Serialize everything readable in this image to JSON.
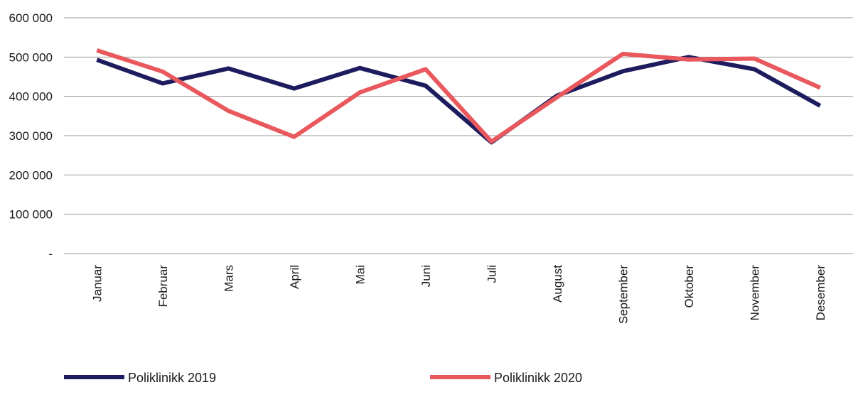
{
  "chart_data": {
    "type": "line",
    "categories": [
      "Januar",
      "Februar",
      "Mars",
      "April",
      "Mai",
      "Juni",
      "Juli",
      "August",
      "September",
      "Oktober",
      "November",
      "Desember"
    ],
    "series": [
      {
        "name": "Poliklinikk 2019",
        "color": "#1c1c5e",
        "values": [
          493000,
          433000,
          471000,
          420000,
          472000,
          427000,
          283000,
          402000,
          464000,
          500000,
          469000,
          376000
        ]
      },
      {
        "name": "Poliklinikk 2020",
        "color": "#e8585c",
        "values": [
          517000,
          463000,
          363000,
          297000,
          410000,
          469000,
          285000,
          398000,
          508000,
          494000,
          496000,
          422000
        ]
      }
    ],
    "y_ticks": [
      "-",
      "100 000",
      "200 000",
      "300 000",
      "400 000",
      "500 000",
      "600 000"
    ],
    "y_tick_values": [
      0,
      100000,
      200000,
      300000,
      400000,
      500000,
      600000
    ],
    "ylim": [
      0,
      600000
    ],
    "grid": true,
    "legend_position": "bottom"
  }
}
